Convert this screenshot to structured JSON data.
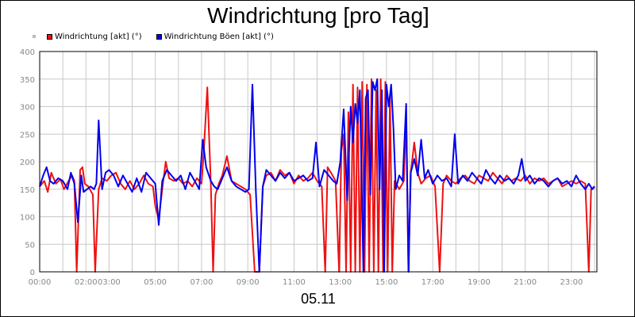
{
  "chart_data": {
    "type": "line",
    "title": "Windrichtung [pro Tag]",
    "xlabel": "05.11",
    "ylabel": "",
    "ylim": [
      0,
      400
    ],
    "yticks": [
      0,
      50,
      100,
      150,
      200,
      250,
      300,
      350,
      400
    ],
    "xlim": [
      0,
      24.1
    ],
    "xticks": [
      {
        "v": 0,
        "label": "00:00"
      },
      {
        "v": 2,
        "label": "02:00"
      },
      {
        "v": 3,
        "label": "03:00"
      },
      {
        "v": 5,
        "label": "05:00"
      },
      {
        "v": 7,
        "label": "07:00"
      },
      {
        "v": 9,
        "label": "09:00"
      },
      {
        "v": 11,
        "label": "11:00"
      },
      {
        "v": 13,
        "label": "13:00"
      },
      {
        "v": 15,
        "label": "15:00"
      },
      {
        "v": 17,
        "label": "17:00"
      },
      {
        "v": 19,
        "label": "19:00"
      },
      {
        "v": 21,
        "label": "21:00"
      },
      {
        "v": 23,
        "label": "23:00"
      }
    ],
    "grid": true,
    "legend_position": "top-left",
    "series": [
      {
        "name": "Windrichtung [akt] (°)",
        "color": "#ee1111",
        "points": [
          [
            0.0,
            155
          ],
          [
            0.2,
            165
          ],
          [
            0.35,
            145
          ],
          [
            0.5,
            180
          ],
          [
            0.7,
            160
          ],
          [
            0.9,
            168
          ],
          [
            1.05,
            150
          ],
          [
            1.25,
            165
          ],
          [
            1.4,
            175
          ],
          [
            1.5,
            165
          ],
          [
            1.6,
            0
          ],
          [
            1.75,
            185
          ],
          [
            1.85,
            190
          ],
          [
            1.95,
            160
          ],
          [
            2.1,
            155
          ],
          [
            2.3,
            140
          ],
          [
            2.4,
            0
          ],
          [
            2.55,
            150
          ],
          [
            2.7,
            170
          ],
          [
            2.9,
            165
          ],
          [
            3.1,
            175
          ],
          [
            3.3,
            180
          ],
          [
            3.5,
            160
          ],
          [
            3.7,
            150
          ],
          [
            3.9,
            165
          ],
          [
            4.1,
            150
          ],
          [
            4.3,
            160
          ],
          [
            4.5,
            175
          ],
          [
            4.7,
            160
          ],
          [
            4.9,
            155
          ],
          [
            5.0,
            120
          ],
          [
            5.15,
            95
          ],
          [
            5.3,
            150
          ],
          [
            5.45,
            200
          ],
          [
            5.6,
            170
          ],
          [
            5.8,
            165
          ],
          [
            6.0,
            170
          ],
          [
            6.2,
            160
          ],
          [
            6.4,
            165
          ],
          [
            6.6,
            155
          ],
          [
            6.8,
            170
          ],
          [
            7.0,
            160
          ],
          [
            7.1,
            220
          ],
          [
            7.25,
            335
          ],
          [
            7.4,
            160
          ],
          [
            7.5,
            0
          ],
          [
            7.6,
            140
          ],
          [
            7.75,
            160
          ],
          [
            7.9,
            175
          ],
          [
            8.1,
            210
          ],
          [
            8.3,
            165
          ],
          [
            8.5,
            160
          ],
          [
            8.7,
            155
          ],
          [
            8.9,
            150
          ],
          [
            9.1,
            140
          ],
          [
            9.3,
            0
          ],
          [
            9.5,
            0
          ],
          [
            9.65,
            155
          ],
          [
            9.8,
            175
          ],
          [
            10.0,
            180
          ],
          [
            10.2,
            165
          ],
          [
            10.4,
            185
          ],
          [
            10.6,
            175
          ],
          [
            10.8,
            180
          ],
          [
            11.0,
            160
          ],
          [
            11.2,
            175
          ],
          [
            11.4,
            165
          ],
          [
            11.6,
            170
          ],
          [
            11.8,
            180
          ],
          [
            12.0,
            165
          ],
          [
            12.2,
            155
          ],
          [
            12.35,
            0
          ],
          [
            12.45,
            190
          ],
          [
            12.6,
            180
          ],
          [
            12.8,
            165
          ],
          [
            12.95,
            0
          ],
          [
            13.05,
            220
          ],
          [
            13.15,
            250
          ],
          [
            13.25,
            0
          ],
          [
            13.35,
            290
          ],
          [
            13.45,
            0
          ],
          [
            13.55,
            340
          ],
          [
            13.65,
            0
          ],
          [
            13.75,
            335
          ],
          [
            13.85,
            0
          ],
          [
            13.95,
            345
          ],
          [
            14.05,
            0
          ],
          [
            14.15,
            340
          ],
          [
            14.25,
            0
          ],
          [
            14.35,
            350
          ],
          [
            14.45,
            0
          ],
          [
            14.55,
            330
          ],
          [
            14.65,
            0
          ],
          [
            14.75,
            350
          ],
          [
            14.85,
            0
          ],
          [
            14.95,
            345
          ],
          [
            15.05,
            0
          ],
          [
            15.15,
            320
          ],
          [
            15.25,
            0
          ],
          [
            15.35,
            165
          ],
          [
            15.55,
            150
          ],
          [
            15.75,
            165
          ],
          [
            15.85,
            280
          ],
          [
            15.95,
            0
          ],
          [
            16.05,
            180
          ],
          [
            16.2,
            235
          ],
          [
            16.35,
            180
          ],
          [
            16.5,
            160
          ],
          [
            16.7,
            170
          ],
          [
            16.9,
            175
          ],
          [
            17.1,
            155
          ],
          [
            17.3,
            0
          ],
          [
            17.45,
            160
          ],
          [
            17.6,
            175
          ],
          [
            17.8,
            165
          ],
          [
            18.0,
            160
          ],
          [
            18.2,
            170
          ],
          [
            18.4,
            175
          ],
          [
            18.6,
            165
          ],
          [
            18.8,
            160
          ],
          [
            19.0,
            175
          ],
          [
            19.2,
            170
          ],
          [
            19.4,
            165
          ],
          [
            19.6,
            180
          ],
          [
            19.8,
            170
          ],
          [
            20.0,
            160
          ],
          [
            20.2,
            175
          ],
          [
            20.4,
            165
          ],
          [
            20.6,
            170
          ],
          [
            20.8,
            165
          ],
          [
            21.0,
            175
          ],
          [
            21.2,
            160
          ],
          [
            21.4,
            170
          ],
          [
            21.6,
            165
          ],
          [
            21.8,
            170
          ],
          [
            22.0,
            160
          ],
          [
            22.2,
            165
          ],
          [
            22.4,
            170
          ],
          [
            22.6,
            155
          ],
          [
            22.8,
            160
          ],
          [
            23.0,
            165
          ],
          [
            23.2,
            160
          ],
          [
            23.4,
            165
          ],
          [
            23.6,
            160
          ],
          [
            23.75,
            0
          ],
          [
            23.85,
            150
          ],
          [
            24.0,
            155
          ]
        ]
      },
      {
        "name": "Windrichtung Böen [akt] (°)",
        "color": "#0000ee",
        "points": [
          [
            0.0,
            155
          ],
          [
            0.15,
            175
          ],
          [
            0.3,
            190
          ],
          [
            0.45,
            165
          ],
          [
            0.6,
            160
          ],
          [
            0.8,
            170
          ],
          [
            1.0,
            165
          ],
          [
            1.2,
            150
          ],
          [
            1.35,
            180
          ],
          [
            1.5,
            160
          ],
          [
            1.65,
            90
          ],
          [
            1.8,
            175
          ],
          [
            1.9,
            145
          ],
          [
            2.05,
            150
          ],
          [
            2.2,
            155
          ],
          [
            2.35,
            150
          ],
          [
            2.45,
            160
          ],
          [
            2.55,
            275
          ],
          [
            2.7,
            150
          ],
          [
            2.85,
            180
          ],
          [
            3.0,
            185
          ],
          [
            3.2,
            175
          ],
          [
            3.4,
            155
          ],
          [
            3.6,
            175
          ],
          [
            3.8,
            160
          ],
          [
            4.0,
            145
          ],
          [
            4.2,
            170
          ],
          [
            4.4,
            145
          ],
          [
            4.6,
            180
          ],
          [
            4.8,
            170
          ],
          [
            5.0,
            160
          ],
          [
            5.15,
            85
          ],
          [
            5.3,
            165
          ],
          [
            5.5,
            185
          ],
          [
            5.7,
            175
          ],
          [
            5.9,
            165
          ],
          [
            6.1,
            175
          ],
          [
            6.3,
            150
          ],
          [
            6.5,
            180
          ],
          [
            6.7,
            165
          ],
          [
            6.9,
            150
          ],
          [
            7.05,
            240
          ],
          [
            7.2,
            190
          ],
          [
            7.4,
            165
          ],
          [
            7.55,
            155
          ],
          [
            7.7,
            150
          ],
          [
            7.9,
            170
          ],
          [
            8.1,
            190
          ],
          [
            8.3,
            165
          ],
          [
            8.5,
            155
          ],
          [
            8.7,
            150
          ],
          [
            8.9,
            145
          ],
          [
            9.05,
            150
          ],
          [
            9.2,
            340
          ],
          [
            9.35,
            145
          ],
          [
            9.5,
            0
          ],
          [
            9.65,
            155
          ],
          [
            9.8,
            185
          ],
          [
            10.0,
            175
          ],
          [
            10.2,
            165
          ],
          [
            10.4,
            180
          ],
          [
            10.6,
            170
          ],
          [
            10.8,
            180
          ],
          [
            11.0,
            165
          ],
          [
            11.2,
            170
          ],
          [
            11.4,
            175
          ],
          [
            11.6,
            165
          ],
          [
            11.8,
            170
          ],
          [
            11.95,
            235
          ],
          [
            12.1,
            155
          ],
          [
            12.3,
            185
          ],
          [
            12.5,
            175
          ],
          [
            12.7,
            165
          ],
          [
            12.85,
            160
          ],
          [
            13.0,
            200
          ],
          [
            13.15,
            295
          ],
          [
            13.3,
            130
          ],
          [
            13.45,
            300
          ],
          [
            13.55,
            235
          ],
          [
            13.65,
            305
          ],
          [
            13.75,
            270
          ],
          [
            13.85,
            330
          ],
          [
            14.0,
            0
          ],
          [
            14.1,
            315
          ],
          [
            14.2,
            330
          ],
          [
            14.3,
            140
          ],
          [
            14.4,
            345
          ],
          [
            14.5,
            330
          ],
          [
            14.6,
            350
          ],
          [
            14.7,
            150
          ],
          [
            14.8,
            330
          ],
          [
            14.9,
            0
          ],
          [
            15.0,
            340
          ],
          [
            15.1,
            300
          ],
          [
            15.2,
            340
          ],
          [
            15.3,
            260
          ],
          [
            15.4,
            150
          ],
          [
            15.55,
            175
          ],
          [
            15.7,
            165
          ],
          [
            15.85,
            305
          ],
          [
            15.95,
            0
          ],
          [
            16.05,
            180
          ],
          [
            16.2,
            205
          ],
          [
            16.35,
            175
          ],
          [
            16.5,
            240
          ],
          [
            16.65,
            170
          ],
          [
            16.8,
            185
          ],
          [
            17.0,
            160
          ],
          [
            17.2,
            175
          ],
          [
            17.4,
            165
          ],
          [
            17.6,
            170
          ],
          [
            17.8,
            155
          ],
          [
            17.95,
            250
          ],
          [
            18.1,
            160
          ],
          [
            18.3,
            175
          ],
          [
            18.5,
            165
          ],
          [
            18.7,
            180
          ],
          [
            18.9,
            170
          ],
          [
            19.1,
            160
          ],
          [
            19.3,
            185
          ],
          [
            19.5,
            170
          ],
          [
            19.7,
            160
          ],
          [
            19.9,
            175
          ],
          [
            20.1,
            165
          ],
          [
            20.3,
            170
          ],
          [
            20.5,
            160
          ],
          [
            20.7,
            175
          ],
          [
            20.85,
            205
          ],
          [
            21.0,
            165
          ],
          [
            21.2,
            175
          ],
          [
            21.4,
            160
          ],
          [
            21.6,
            170
          ],
          [
            21.8,
            165
          ],
          [
            22.0,
            155
          ],
          [
            22.2,
            165
          ],
          [
            22.4,
            170
          ],
          [
            22.6,
            160
          ],
          [
            22.8,
            165
          ],
          [
            23.0,
            155
          ],
          [
            23.2,
            175
          ],
          [
            23.4,
            160
          ],
          [
            23.6,
            150
          ],
          [
            23.75,
            160
          ],
          [
            23.9,
            150
          ],
          [
            24.0,
            155
          ]
        ]
      }
    ]
  }
}
